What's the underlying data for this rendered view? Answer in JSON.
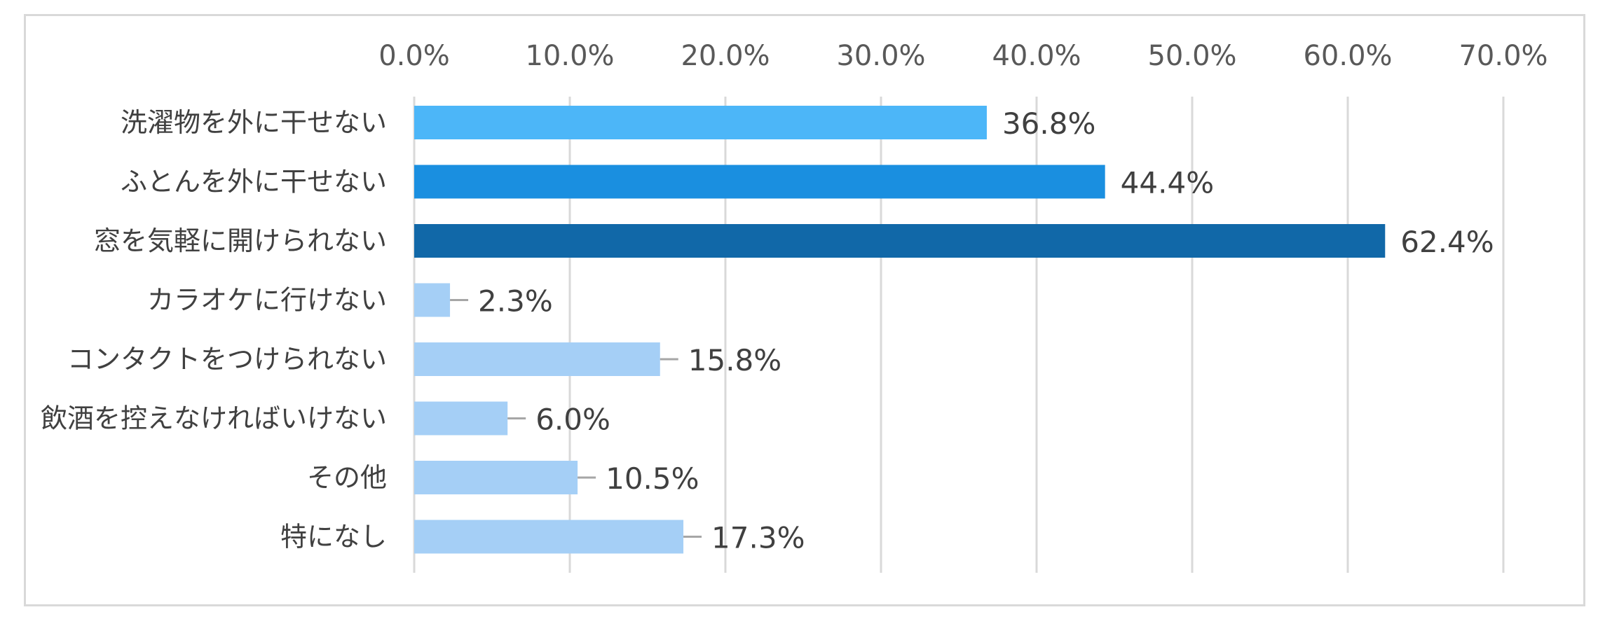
{
  "chart_data": {
    "type": "bar",
    "orientation": "horizontal",
    "categories": [
      "洗濯物を外に干せない",
      "ふとんを外に干せない",
      "窓を気軽に開けられない",
      "カラオケに行けない",
      "コンタクトをつけられない",
      "飲酒を控えなければいけない",
      "その他",
      "特になし"
    ],
    "values": [
      36.8,
      44.4,
      62.4,
      2.3,
      15.8,
      6.0,
      10.5,
      17.3
    ],
    "value_labels": [
      "36.8%",
      "44.4%",
      "62.4%",
      "2.3%",
      "15.8%",
      "6.0%",
      "10.5%",
      "17.3%"
    ],
    "bar_colors": [
      "#4cb6f8",
      "#1a8fe0",
      "#1168a8",
      "#a5cff6",
      "#a5cff6",
      "#a5cff6",
      "#a5cff6",
      "#a5cff6"
    ],
    "xlim": [
      0,
      70
    ],
    "xticks": [
      0,
      10,
      20,
      30,
      40,
      50,
      60,
      70
    ],
    "xtick_labels": [
      "0.0%",
      "10.0%",
      "20.0%",
      "30.0%",
      "40.0%",
      "50.0%",
      "60.0%",
      "70.0%"
    ],
    "x_axis_position": "top",
    "grid": true,
    "gridline_color": "#d9d9d9",
    "leader_line_color": "#a6a6a6",
    "title": "",
    "xlabel": "",
    "ylabel": ""
  }
}
